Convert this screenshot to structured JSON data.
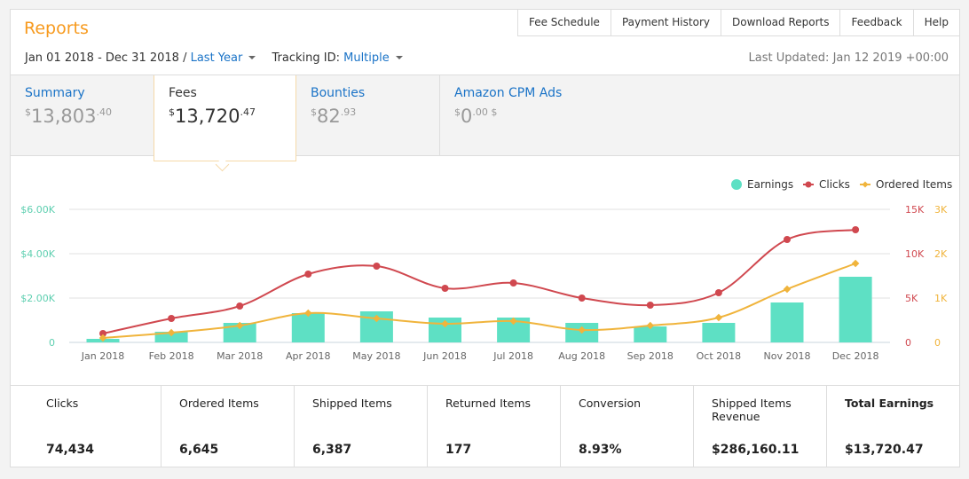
{
  "header": {
    "title": "Reports",
    "tabs": [
      "Fee Schedule",
      "Payment History",
      "Download Reports",
      "Feedback",
      "Help"
    ],
    "date_range": "Jan 01 2018 - Dec 31 2018 /",
    "period": "Last Year",
    "tracking_label": "Tracking ID:",
    "tracking_value": "Multiple",
    "last_updated": "Last Updated: Jan 12 2019 +00:00"
  },
  "metrics": [
    {
      "label": "Summary",
      "cur": "$",
      "whole": "13,803",
      "cents": ".40"
    },
    {
      "label": "Fees",
      "cur": "$",
      "whole": "13,720",
      "cents": ".47"
    },
    {
      "label": "Bounties",
      "cur": "$",
      "whole": "82",
      "cents": ".93"
    },
    {
      "label": "Amazon CPM Ads",
      "cur": "$",
      "whole": "0",
      "cents": ".00 $"
    }
  ],
  "chart_data": {
    "type": "bar+line",
    "categories": [
      "Jan 2018",
      "Feb 2018",
      "Mar 2018",
      "Apr 2018",
      "May 2018",
      "Jun 2018",
      "Jul 2018",
      "Aug 2018",
      "Sep 2018",
      "Oct 2018",
      "Nov 2018",
      "Dec 2018"
    ],
    "series": [
      {
        "name": "Earnings",
        "type": "bar",
        "axis": "left",
        "color": "#5ee0c4",
        "values": [
          160,
          480,
          880,
          1320,
          1400,
          1120,
          1120,
          880,
          720,
          880,
          1800,
          2960
        ]
      },
      {
        "name": "Clicks",
        "type": "line",
        "axis": "right1",
        "color": "#d0484f",
        "values": [
          1000,
          2700,
          4100,
          7700,
          8600,
          6100,
          6700,
          5000,
          4200,
          5600,
          11600,
          12700
        ]
      },
      {
        "name": "Ordered Items",
        "type": "line",
        "axis": "right2",
        "color": "#f0b43c",
        "values": [
          100,
          220,
          380,
          660,
          540,
          420,
          480,
          280,
          380,
          560,
          1200,
          1780
        ]
      }
    ],
    "left_axis": {
      "ticks": [
        "0",
        "$2.00K",
        "$4.00K",
        "$6.00K"
      ],
      "range": [
        0,
        6000
      ]
    },
    "right1_axis": {
      "ticks": [
        "0",
        "5K",
        "10K",
        "15K"
      ],
      "range": [
        0,
        15000
      ]
    },
    "right2_axis": {
      "ticks": [
        "0",
        "1K",
        "2K",
        "3K"
      ],
      "range": [
        0,
        3000
      ]
    },
    "legend": "top-right",
    "grid": true
  },
  "stats": [
    {
      "label": "Clicks",
      "value": "74,434"
    },
    {
      "label": "Ordered Items",
      "value": "6,645"
    },
    {
      "label": "Shipped Items",
      "value": "6,387"
    },
    {
      "label": "Returned Items",
      "value": "177"
    },
    {
      "label": "Conversion",
      "value": "8.93%"
    },
    {
      "label": "Shipped Items Revenue",
      "value": "$286,160.11"
    },
    {
      "label": "Total Earnings",
      "value": "$13,720.47"
    }
  ]
}
